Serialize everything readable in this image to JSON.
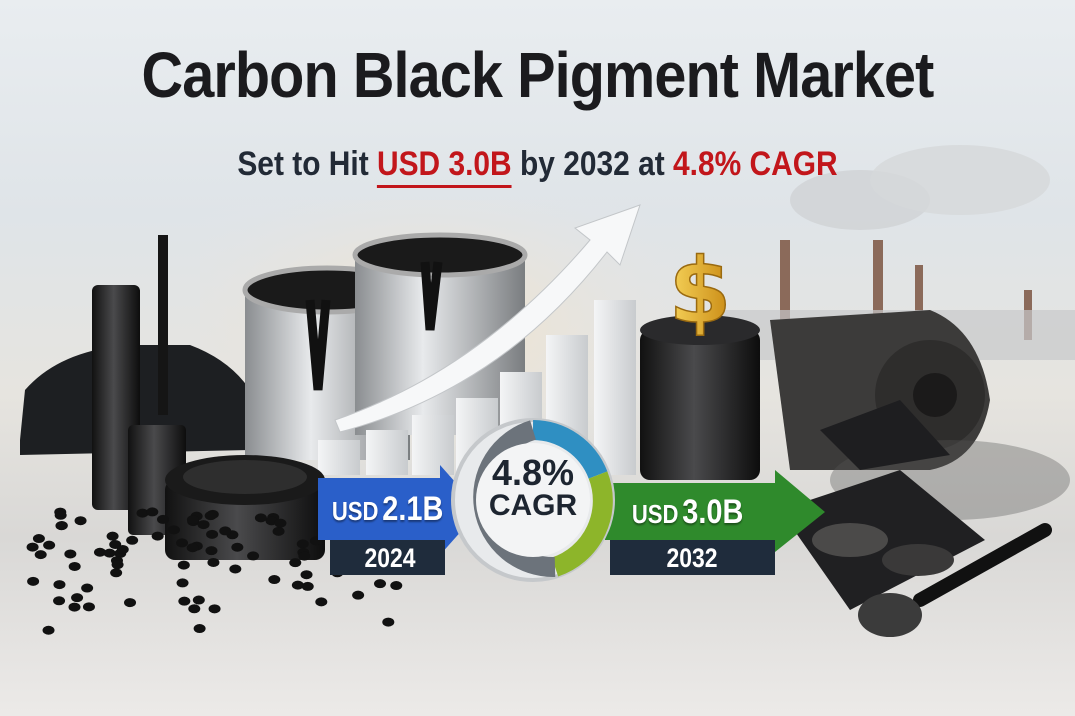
{
  "title": "Carbon Black Pigment Market",
  "subtitle": {
    "prefix": "Set to Hit",
    "target_value": "USD 3.0B",
    "middle": "by 2032 at",
    "cagr": "4.8% CAGR"
  },
  "start": {
    "currency": "USD",
    "value": "2.1B",
    "year": "2024"
  },
  "end": {
    "currency": "USD",
    "value": "3.0B",
    "year": "2032"
  },
  "cagr_badge": {
    "value": "4.8%",
    "label": "CAGR"
  },
  "colors": {
    "accent_red": "#c2161b",
    "start_arrow": "#2a5fc9",
    "end_arrow": "#2f8a2c",
    "ring_blue": "#2f8fc2",
    "ring_green": "#8db52a",
    "dollar_gold": "#e0a82a"
  },
  "icons": [
    "car-icon",
    "mascara-icon",
    "paint-can-icon",
    "growth-arrow-icon",
    "dollar-sign-icon",
    "factory-smokestacks-icon",
    "carbon-roll-icon",
    "eyeshadow-palette-icon",
    "makeup-brush-icon",
    "pigment-jar-icon",
    "carbon-pellets-icon"
  ]
}
